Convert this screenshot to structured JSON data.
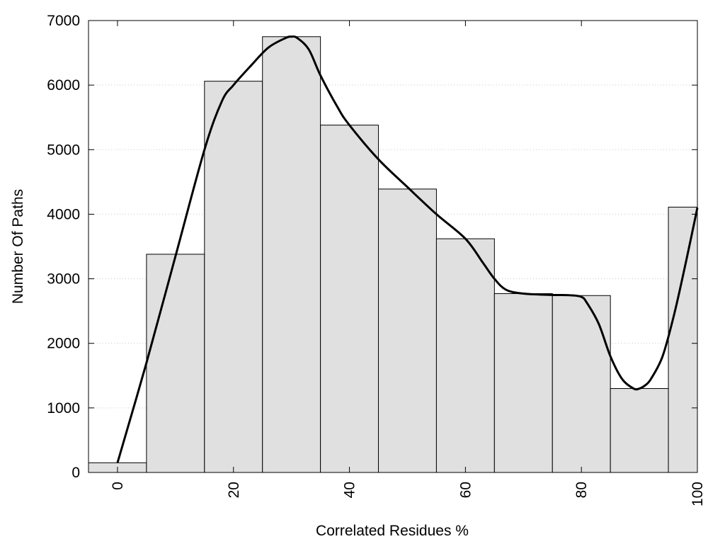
{
  "chart_data": {
    "type": "bar",
    "title": "",
    "xlabel": "Correlated Residues %",
    "ylabel": "Number Of Paths",
    "xlim": [
      -5,
      100
    ],
    "ylim": [
      0,
      7000
    ],
    "grid": "horizontal dotted",
    "x_ticks": [
      {
        "value": 0,
        "label": "0"
      },
      {
        "value": 20,
        "label": "20"
      },
      {
        "value": 40,
        "label": "40"
      },
      {
        "value": 60,
        "label": "60"
      },
      {
        "value": 80,
        "label": "80"
      },
      {
        "value": 100,
        "label": "100"
      }
    ],
    "y_ticks": [
      {
        "value": 0,
        "label": "0"
      },
      {
        "value": 1000,
        "label": "1000"
      },
      {
        "value": 2000,
        "label": "2000"
      },
      {
        "value": 3000,
        "label": "3000"
      },
      {
        "value": 4000,
        "label": "4000"
      },
      {
        "value": 5000,
        "label": "5000"
      },
      {
        "value": 6000,
        "label": "6000"
      },
      {
        "value": 7000,
        "label": "7000"
      }
    ],
    "bars": [
      {
        "x0": -5,
        "x1": 5,
        "value": 150
      },
      {
        "x0": 5,
        "x1": 15,
        "value": 3380
      },
      {
        "x0": 15,
        "x1": 25,
        "value": 6060
      },
      {
        "x0": 25,
        "x1": 35,
        "value": 6750
      },
      {
        "x0": 35,
        "x1": 45,
        "value": 5380
      },
      {
        "x0": 45,
        "x1": 55,
        "value": 4390
      },
      {
        "x0": 55,
        "x1": 65,
        "value": 3620
      },
      {
        "x0": 65,
        "x1": 75,
        "value": 2770
      },
      {
        "x0": 75,
        "x1": 85,
        "value": 2740
      },
      {
        "x0": 85,
        "x1": 95,
        "value": 1300
      },
      {
        "x0": 95,
        "x1": 100,
        "value": 4110
      }
    ],
    "curve": {
      "x": [
        0,
        5,
        10,
        15,
        18,
        20,
        23,
        26,
        29,
        30,
        31,
        33,
        35,
        38,
        40,
        45,
        50,
        55,
        60,
        63,
        65,
        67,
        70,
        75,
        78,
        80,
        81,
        83,
        85,
        87,
        89,
        90,
        91,
        92,
        94,
        96,
        98,
        100
      ],
      "y": [
        150,
        1700,
        3350,
        5000,
        5750,
        6000,
        6300,
        6580,
        6730,
        6750,
        6730,
        6550,
        6150,
        5650,
        5380,
        4850,
        4420,
        4000,
        3620,
        3250,
        3000,
        2830,
        2770,
        2750,
        2745,
        2720,
        2620,
        2300,
        1800,
        1450,
        1300,
        1300,
        1350,
        1450,
        1800,
        2450,
        3250,
        4100
      ]
    },
    "colors": {
      "bar_fill": "#e0e0e0",
      "bar_stroke": "#000000",
      "curve": "#000000",
      "grid": "#c8c8c8"
    }
  }
}
